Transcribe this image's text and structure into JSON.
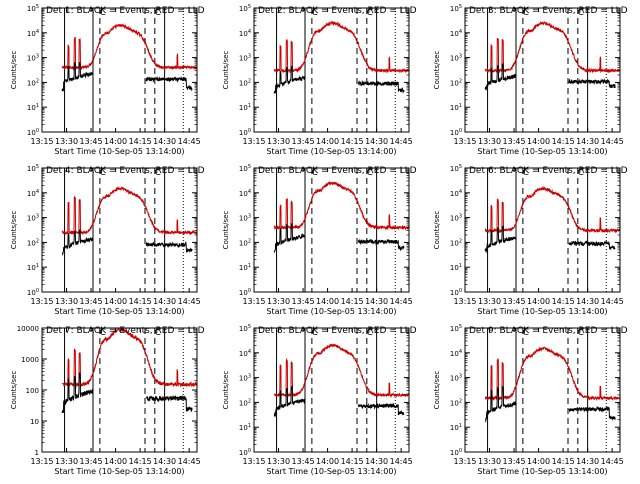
{
  "figure": {
    "title_prefix": "Det",
    "title_suffix": "BLACK = Events, RED = LLD",
    "xlabel": "Start Time (10-Sep-05 13:14:00)",
    "ylabel": "Counts/sec",
    "legend": [
      {
        "name": "Events",
        "color": "#000000"
      },
      {
        "name": "LLD",
        "color": "#cc0000"
      }
    ]
  },
  "chart_data": [
    {
      "type": "line",
      "det": "1",
      "title": "Det 1: BLACK = Events, RED = LLD",
      "xlabel": "Start Time (10-Sep-05 13:14:00)",
      "ylabel": "Counts/sec",
      "xlim": [
        13.25,
        14.83
      ],
      "xticks": [
        "13:15",
        "13:30",
        "13:45",
        "14:00",
        "14:15",
        "14:30",
        "14:45"
      ],
      "yscale": "log",
      "ylim": [
        1,
        100000
      ],
      "ytick_labels": [
        "10^0",
        "10^1",
        "10^2",
        "10^3",
        "10^4",
        "10^5"
      ],
      "lld_base": 400,
      "lld_peak": 20000,
      "events_base": 150,
      "events_peak": 600,
      "events_dip": 50,
      "spikes_lld": [
        3000,
        6000,
        5000
      ],
      "vlines_solid": [
        13.48,
        13.77,
        14.5
      ],
      "vlines_dashed": [
        13.84,
        14.3,
        14.4
      ],
      "vlines_dotted": [
        14.69
      ],
      "markers": [
        "C",
        "C"
      ]
    },
    {
      "type": "line",
      "det": "2",
      "title": "Det 2: BLACK = Events, RED = LLD",
      "xlabel": "Start Time (10-Sep-05 13:14:00)",
      "ylabel": "Counts/sec",
      "xlim": [
        13.25,
        14.83
      ],
      "xticks": [
        "13:15",
        "13:30",
        "13:45",
        "14:00",
        "14:15",
        "14:30",
        "14:45"
      ],
      "yscale": "log",
      "ylim": [
        1,
        100000
      ],
      "ytick_labels": [
        "10^0",
        "10^1",
        "10^2",
        "10^3",
        "10^4",
        "10^5"
      ],
      "lld_base": 300,
      "lld_peak": 25000,
      "events_base": 100,
      "events_peak": 400,
      "events_dip": 40,
      "spikes_lld": [
        3000,
        5000,
        4000
      ],
      "vlines_solid": [
        13.48,
        13.77,
        14.5
      ],
      "vlines_dashed": [
        13.84,
        14.3,
        14.4
      ],
      "vlines_dotted": [
        14.69
      ],
      "markers": [
        "C",
        "C"
      ]
    },
    {
      "type": "line",
      "det": "3",
      "title": "Det 3: BLACK = Events, RED = LLD",
      "xlabel": "Start Time (10-Sep-05 13:14:00)",
      "ylabel": "Counts/sec",
      "xlim": [
        13.25,
        14.83
      ],
      "xticks": [
        "13:15",
        "13:30",
        "13:45",
        "14:00",
        "14:15",
        "14:30",
        "14:45"
      ],
      "yscale": "log",
      "ylim": [
        1,
        100000
      ],
      "ytick_labels": [
        "10^0",
        "10^1",
        "10^2",
        "10^3",
        "10^4",
        "10^5"
      ],
      "lld_base": 300,
      "lld_peak": 25000,
      "events_base": 120,
      "events_peak": 500,
      "events_dip": 60,
      "spikes_lld": [
        3000,
        6000,
        5000
      ],
      "vlines_solid": [
        13.48,
        13.77,
        14.5
      ],
      "vlines_dashed": [
        13.84,
        14.3,
        14.4
      ],
      "vlines_dotted": [
        14.69
      ],
      "markers": [
        "C",
        "C"
      ]
    },
    {
      "type": "line",
      "det": "4",
      "title": "Det 4: BLACK = Events, RED = LLD",
      "xlabel": "Start Time (10-Sep-05 13:14:00)",
      "ylabel": "Counts/sec",
      "xlim": [
        13.25,
        14.83
      ],
      "xticks": [
        "13:15",
        "13:30",
        "13:45",
        "14:00",
        "14:15",
        "14:30",
        "14:45"
      ],
      "yscale": "log",
      "ylim": [
        1,
        100000
      ],
      "ytick_labels": [
        "10^0",
        "10^1",
        "10^2",
        "10^3",
        "10^4",
        "10^5"
      ],
      "lld_base": 250,
      "lld_peak": 15000,
      "events_base": 90,
      "events_peak": 300,
      "events_dip": 40,
      "spikes_lld": [
        4000,
        6000,
        5000
      ],
      "vlines_solid": [
        13.48,
        13.77,
        14.5
      ],
      "vlines_dashed": [
        13.84,
        14.3,
        14.4
      ],
      "vlines_dotted": [
        14.69
      ],
      "markers": [
        "C",
        "C"
      ]
    },
    {
      "type": "line",
      "det": "5",
      "title": "Det 5: BLACK = Events, RED = LLD",
      "xlabel": "Start Time (10-Sep-05 13:14:00)",
      "ylabel": "Counts/sec",
      "xlim": [
        13.25,
        14.83
      ],
      "xticks": [
        "13:15",
        "13:30",
        "13:45",
        "14:00",
        "14:15",
        "14:30",
        "14:45"
      ],
      "yscale": "log",
      "ylim": [
        1,
        100000
      ],
      "ytick_labels": [
        "10^0",
        "10^1",
        "10^2",
        "10^3",
        "10^4",
        "10^5"
      ],
      "lld_base": 400,
      "lld_peak": 25000,
      "events_base": 120,
      "events_peak": 500,
      "events_dip": 50,
      "spikes_lld": [
        3000,
        5000,
        4000
      ],
      "vlines_solid": [
        13.48,
        13.77,
        14.5
      ],
      "vlines_dashed": [
        13.84,
        14.3,
        14.4
      ],
      "vlines_dotted": [
        14.69
      ],
      "markers": [
        "C",
        "C"
      ]
    },
    {
      "type": "line",
      "det": "6",
      "title": "Det 6: BLACK = Events, RED = LLD",
      "xlabel": "Start Time (10-Sep-05 13:14:00)",
      "ylabel": "Counts/sec",
      "xlim": [
        13.25,
        14.83
      ],
      "xticks": [
        "13:15",
        "13:30",
        "13:45",
        "14:00",
        "14:15",
        "14:30",
        "14:45"
      ],
      "yscale": "log",
      "ylim": [
        1,
        100000
      ],
      "ytick_labels": [
        "10^0",
        "10^1",
        "10^2",
        "10^3",
        "10^4",
        "10^5"
      ],
      "lld_base": 300,
      "lld_peak": 15000,
      "events_base": 100,
      "events_peak": 400,
      "events_dip": 50,
      "spikes_lld": [
        3000,
        5000,
        4000
      ],
      "vlines_solid": [
        13.48,
        13.77,
        14.5
      ],
      "vlines_dashed": [
        13.84,
        14.3,
        14.4
      ],
      "vlines_dotted": [
        14.69
      ],
      "markers": [
        "C",
        "C"
      ]
    },
    {
      "type": "line",
      "det": "7",
      "title": "Det 7: BLACK = Events, RED = LLD",
      "xlabel": "Start Time (10-Sep-05 13:14:00)",
      "ylabel": "Counts/sec",
      "xlim": [
        13.25,
        14.83
      ],
      "xticks": [
        "13:15",
        "13:30",
        "13:45",
        "14:00",
        "14:15",
        "14:30",
        "14:45"
      ],
      "yscale": "log",
      "ylim": [
        1,
        10000
      ],
      "ytick_labels": [
        "1",
        "10",
        "100",
        "1000",
        "10000"
      ],
      "lld_base": 150,
      "lld_peak": 9000,
      "events_base": 60,
      "events_peak": 300,
      "events_dip": 20,
      "spikes_lld": [
        1000,
        2000,
        1500
      ],
      "vlines_solid": [
        13.48,
        13.77,
        14.5
      ],
      "vlines_dashed": [
        13.84,
        14.3,
        14.4
      ],
      "vlines_dotted": [
        14.69
      ],
      "markers": [
        "C",
        "C"
      ]
    },
    {
      "type": "line",
      "det": "8",
      "title": "Det 8: BLACK = Events, RED = LLD",
      "xlabel": "Start Time (10-Sep-05 13:14:00)",
      "ylabel": "Counts/sec",
      "xlim": [
        13.25,
        14.83
      ],
      "xticks": [
        "13:15",
        "13:30",
        "13:45",
        "14:00",
        "14:15",
        "14:30",
        "14:45"
      ],
      "yscale": "log",
      "ylim": [
        1,
        100000
      ],
      "ytick_labels": [
        "10^0",
        "10^1",
        "10^2",
        "10^3",
        "10^4",
        "10^5"
      ],
      "lld_base": 200,
      "lld_peak": 20000,
      "events_base": 80,
      "events_peak": 400,
      "events_dip": 30,
      "spikes_lld": [
        3000,
        5000,
        4000
      ],
      "vlines_solid": [
        13.48,
        13.77,
        14.5
      ],
      "vlines_dashed": [
        13.84,
        14.3,
        14.4
      ],
      "vlines_dotted": [
        14.69
      ],
      "markers": [
        "C",
        "C"
      ]
    },
    {
      "type": "line",
      "det": "9",
      "title": "Det 9: BLACK = Events, RED = LLD",
      "xlabel": "Start Time (10-Sep-05 13:14:00)",
      "ylabel": "Counts/sec",
      "xlim": [
        13.25,
        14.83
      ],
      "xticks": [
        "13:15",
        "13:30",
        "13:45",
        "14:00",
        "14:15",
        "14:30",
        "14:45"
      ],
      "yscale": "log",
      "ylim": [
        1,
        100000
      ],
      "ytick_labels": [
        "10^0",
        "10^1",
        "10^2",
        "10^3",
        "10^4",
        "10^5"
      ],
      "lld_base": 150,
      "lld_peak": 15000,
      "events_base": 60,
      "events_peak": 400,
      "events_dip": 20,
      "spikes_lld": [
        3000,
        5000,
        4000
      ],
      "vlines_solid": [
        13.48,
        13.77,
        14.5
      ],
      "vlines_dashed": [
        13.84,
        14.3,
        14.4
      ],
      "vlines_dotted": [
        14.69
      ],
      "markers": [
        "C",
        "C"
      ]
    }
  ]
}
